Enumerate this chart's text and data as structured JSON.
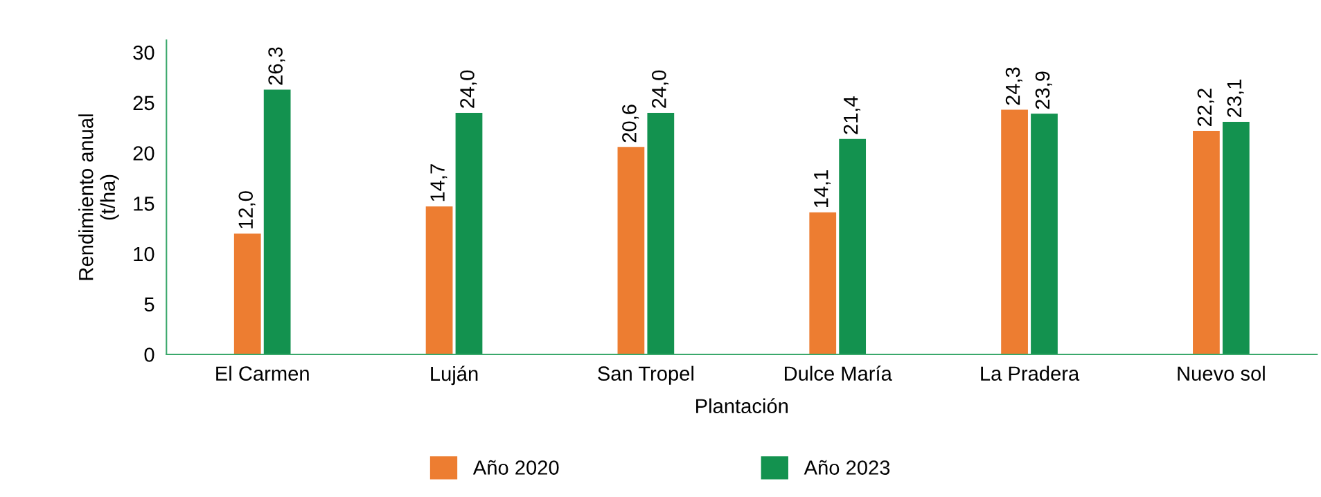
{
  "chart_data": {
    "type": "bar",
    "xlabel": "Plantación",
    "ylabel": "Rendimiento anual\n(t/ha)",
    "categories": [
      "El Carmen",
      "Luján",
      "San Tropel",
      "Dulce María",
      "La Pradera",
      "Nuevo sol"
    ],
    "series": [
      {
        "name": "Año 2020",
        "color": "#ed7d31",
        "values": [
          12.0,
          14.7,
          20.6,
          14.1,
          24.3,
          22.2
        ],
        "value_labels": [
          "12,0",
          "14,7",
          "20,6",
          "14,1",
          "24,3",
          "22,2"
        ]
      },
      {
        "name": "Año 2023",
        "color": "#13924f",
        "values": [
          26.3,
          24.0,
          24.0,
          21.4,
          23.9,
          23.1
        ],
        "value_labels": [
          "26,3",
          "24,0",
          "24,0",
          "21,4",
          "23,9",
          "23,1"
        ]
      }
    ],
    "ylim": [
      0,
      31.2
    ],
    "yticks": [
      0,
      5,
      10,
      15,
      20,
      25,
      30
    ],
    "grid": false,
    "legend": "bottom"
  }
}
